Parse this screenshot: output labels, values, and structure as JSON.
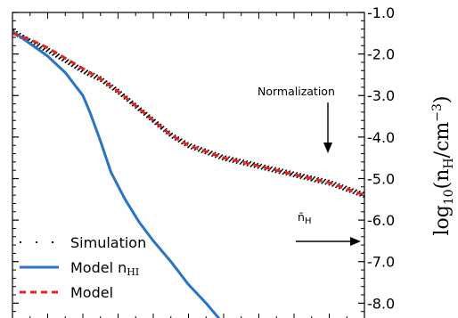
{
  "chart_data": {
    "type": "line",
    "xlabel": "",
    "ylabel": "log10(nH/cm^-3)",
    "ylabel_parts": {
      "log": "log",
      "sub": "10",
      "n": "n",
      "nsub": "H",
      "unit": "cm",
      "exp": "−3"
    },
    "ylim": [
      -8.4,
      -1.0
    ],
    "x_ticks_labeled": false,
    "y_ticks": [
      "-1.0",
      "-2.0",
      "-3.0",
      "-4.0",
      "-5.0",
      "-6.0",
      "-7.0",
      "-8.0"
    ],
    "y_tick_values": [
      -1,
      -2,
      -3,
      -4,
      -5,
      -6,
      -7,
      -8
    ],
    "y_axis_side": "right",
    "x_range": [
      0,
      1
    ],
    "series": [
      {
        "name": "Simulation",
        "name_parts": {
          "text": "Simulation"
        },
        "style": "dotted",
        "color": "#000000",
        "x": [
          0.0,
          0.05,
          0.1,
          0.15,
          0.2,
          0.25,
          0.3,
          0.35,
          0.4,
          0.45,
          0.5,
          0.55,
          0.6,
          0.65,
          0.7,
          0.75,
          0.8,
          0.85,
          0.9,
          0.95,
          1.0
        ],
        "y": [
          -1.45,
          -1.7,
          -1.9,
          -2.15,
          -2.4,
          -2.6,
          -2.9,
          -3.25,
          -3.6,
          -3.95,
          -4.2,
          -4.35,
          -4.5,
          -4.6,
          -4.7,
          -4.8,
          -4.9,
          -5.0,
          -5.1,
          -5.25,
          -5.4
        ]
      },
      {
        "name": "Model nHI",
        "name_parts": {
          "text": "Model n",
          "sub": "HI"
        },
        "style": "solid",
        "color": "#2b73c4",
        "x": [
          0.0,
          0.05,
          0.1,
          0.15,
          0.2,
          0.22,
          0.25,
          0.28,
          0.32,
          0.36,
          0.4,
          0.45,
          0.5,
          0.55,
          0.6
        ],
        "y": [
          -1.45,
          -1.75,
          -2.05,
          -2.45,
          -3.0,
          -3.4,
          -4.1,
          -4.85,
          -5.5,
          -6.05,
          -6.5,
          -7.0,
          -7.55,
          -8.0,
          -8.5
        ]
      },
      {
        "name": "Model",
        "name_parts": {
          "text": "Model"
        },
        "style": "dashed",
        "color": "#e8221e",
        "x": [
          0.0,
          0.05,
          0.1,
          0.15,
          0.2,
          0.25,
          0.3,
          0.35,
          0.4,
          0.45,
          0.5,
          0.55,
          0.6,
          0.65,
          0.7,
          0.75,
          0.8,
          0.85,
          0.9,
          0.95,
          1.0
        ],
        "y": [
          -1.5,
          -1.65,
          -1.85,
          -2.1,
          -2.35,
          -2.6,
          -2.9,
          -3.25,
          -3.6,
          -3.95,
          -4.2,
          -4.35,
          -4.5,
          -4.6,
          -4.7,
          -4.8,
          -4.9,
          -5.0,
          -5.1,
          -5.25,
          -5.4
        ]
      }
    ],
    "annotations": [
      {
        "text": "Normalization",
        "arrow": "down"
      },
      {
        "text": "n̄",
        "sub": "H",
        "arrow": "right"
      }
    ],
    "legend": {
      "position": "bottom-left",
      "frame": false
    },
    "grid": false
  }
}
